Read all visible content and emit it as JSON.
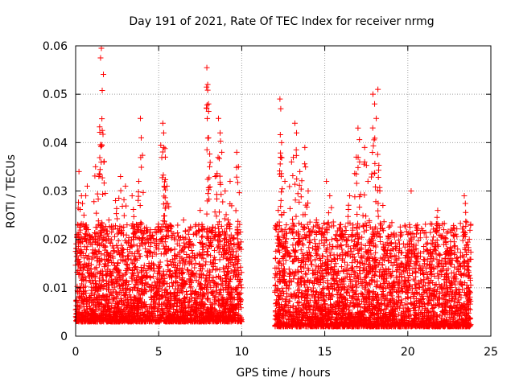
{
  "chart_data": {
    "type": "scatter",
    "title": "Day 191 of 2021, Rate Of TEC Index for receiver nrmg",
    "xlabel": "GPS time / hours",
    "ylabel": "ROTI / TECUs",
    "xlim": [
      0,
      25
    ],
    "ylim": [
      0,
      0.06
    ],
    "x_ticks": [
      "0",
      "5",
      "10",
      "15",
      "20",
      "25"
    ],
    "y_ticks": [
      "0",
      "0.01",
      "0.02",
      "0.03",
      "0.04",
      "0.05",
      "0.06"
    ],
    "grid": true,
    "marker": "plus",
    "colors": {
      "points": "#ff0000",
      "grid": "#a0a0a0",
      "axis": "#000000"
    },
    "data_gap_hours": [
      10.0,
      12.0
    ],
    "series": [
      {
        "name": "",
        "points": [
          [
            0.1,
            0.021
          ],
          [
            0.2,
            0.034
          ],
          [
            0.35,
            0.029
          ],
          [
            0.5,
            0.025
          ],
          [
            0.7,
            0.031
          ],
          [
            1.0,
            0.019
          ],
          [
            1.2,
            0.035
          ],
          [
            1.4,
            0.033
          ],
          [
            1.5,
            0.0575
          ],
          [
            1.55,
            0.0595
          ],
          [
            1.6,
            0.0425
          ],
          [
            1.7,
            0.036
          ],
          [
            2.0,
            0.024
          ],
          [
            2.4,
            0.028
          ],
          [
            2.7,
            0.033
          ],
          [
            3.0,
            0.031
          ],
          [
            3.4,
            0.029
          ],
          [
            3.8,
            0.032
          ],
          [
            3.9,
            0.045
          ],
          [
            3.95,
            0.041
          ],
          [
            4.5,
            0.022
          ],
          [
            5.0,
            0.018
          ],
          [
            5.25,
            0.044
          ],
          [
            5.3,
            0.042
          ],
          [
            5.3,
            0.039
          ],
          [
            5.4,
            0.037
          ],
          [
            5.5,
            0.031
          ],
          [
            6.0,
            0.016
          ],
          [
            6.5,
            0.024
          ],
          [
            7.0,
            0.019
          ],
          [
            7.5,
            0.026
          ],
          [
            7.9,
            0.0555
          ],
          [
            7.95,
            0.052
          ],
          [
            8.0,
            0.048
          ],
          [
            8.0,
            0.041
          ],
          [
            8.4,
            0.033
          ],
          [
            8.6,
            0.045
          ],
          [
            8.7,
            0.042
          ],
          [
            8.8,
            0.038
          ],
          [
            9.0,
            0.03
          ],
          [
            9.3,
            0.032
          ],
          [
            9.7,
            0.038
          ],
          [
            9.8,
            0.035
          ],
          [
            12.2,
            0.026
          ],
          [
            12.3,
            0.049
          ],
          [
            12.35,
            0.047
          ],
          [
            12.4,
            0.04
          ],
          [
            12.6,
            0.032
          ],
          [
            13.0,
            0.036
          ],
          [
            13.2,
            0.044
          ],
          [
            13.3,
            0.042
          ],
          [
            13.5,
            0.034
          ],
          [
            13.8,
            0.039
          ],
          [
            14.0,
            0.03
          ],
          [
            14.5,
            0.024
          ],
          [
            15.1,
            0.032
          ],
          [
            15.3,
            0.029
          ],
          [
            16.0,
            0.021
          ],
          [
            16.5,
            0.029
          ],
          [
            16.9,
            0.037
          ],
          [
            17.0,
            0.043
          ],
          [
            17.1,
            0.036
          ],
          [
            17.4,
            0.039
          ],
          [
            17.6,
            0.032
          ],
          [
            17.9,
            0.05
          ],
          [
            18.0,
            0.048
          ],
          [
            18.1,
            0.045
          ],
          [
            18.2,
            0.051
          ],
          [
            18.5,
            0.027
          ],
          [
            19.0,
            0.021
          ],
          [
            19.5,
            0.019
          ],
          [
            20.0,
            0.021
          ],
          [
            20.2,
            0.03
          ],
          [
            20.5,
            0.018
          ],
          [
            21.0,
            0.015
          ],
          [
            21.5,
            0.019
          ],
          [
            21.8,
            0.026
          ],
          [
            22.3,
            0.019
          ],
          [
            22.6,
            0.016
          ],
          [
            23.0,
            0.018
          ],
          [
            23.4,
            0.029
          ],
          [
            23.7,
            0.02
          ]
        ],
        "baseline_band": {
          "segments": [
            {
              "x_range": [
                0.0,
                10.0
              ],
              "y_range": [
                0.003,
                0.018
              ]
            },
            {
              "x_range": [
                12.0,
                23.8
              ],
              "y_range": [
                0.002,
                0.018
              ]
            }
          ]
        }
      }
    ]
  }
}
